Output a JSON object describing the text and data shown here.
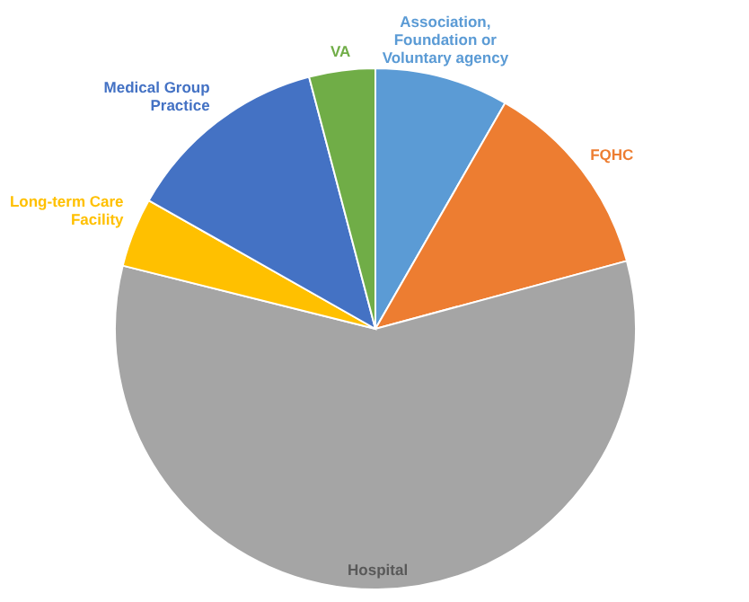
{
  "chart_data": {
    "type": "pie",
    "categories": [
      "Association, Foundation or Voluntary agency",
      "FQHC",
      "Hospital",
      "Long-term Care Facility",
      "Medical Group Practice",
      "VA"
    ],
    "values": [
      8.3,
      12.5,
      58.1,
      4.3,
      12.7,
      4.1
    ],
    "colors": [
      "#5b9bd5",
      "#ed7d31",
      "#a5a5a5",
      "#ffc000",
      "#4472c4",
      "#70ad47"
    ]
  }
}
